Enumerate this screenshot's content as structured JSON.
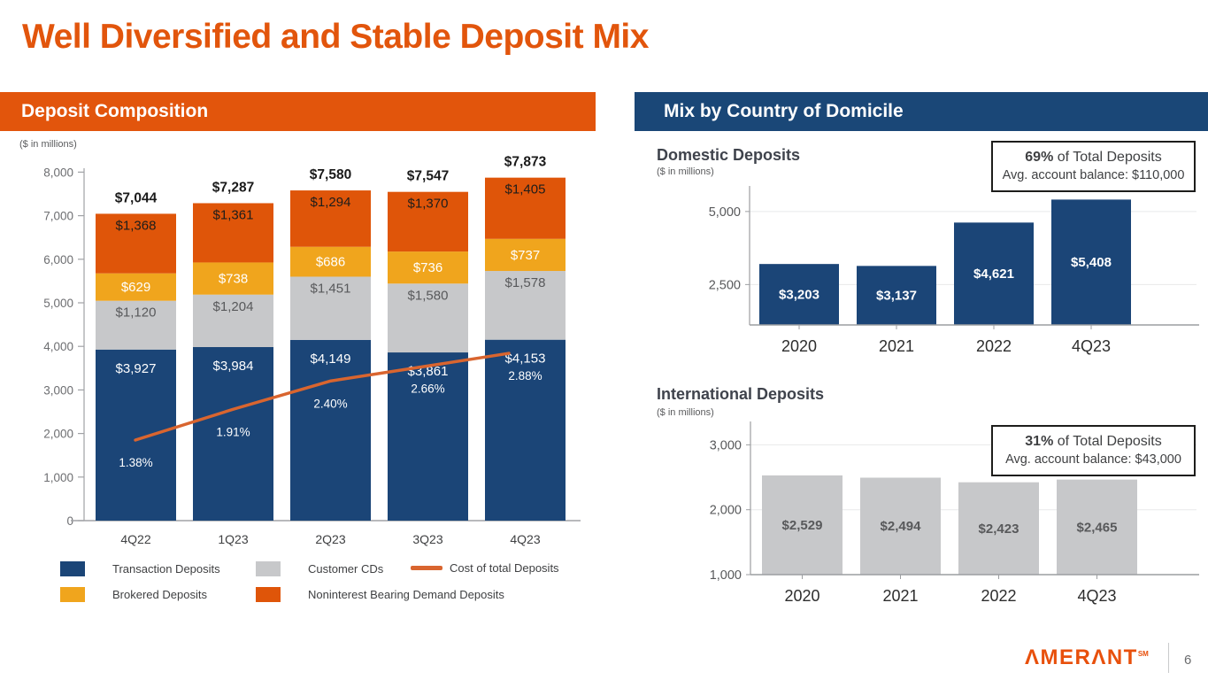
{
  "slide": {
    "title": "Well Diversified and Stable Deposit Mix",
    "page_number": "6",
    "logo_text": "AMERANT",
    "logo_sup": "SM",
    "brand_orange": "#E2550C",
    "brand_blue": "#1A4777"
  },
  "left_panel": {
    "header": "Deposit Composition",
    "units_label": "($ in millions)",
    "legend": [
      {
        "label": "Transaction Deposits",
        "color": "#1B4577",
        "type": "square"
      },
      {
        "label": "Customer CDs",
        "color": "#C7C8CA",
        "type": "square"
      },
      {
        "label": "Cost of total Deposits",
        "color": "#D9652F",
        "type": "line"
      },
      {
        "label": "Brokered Deposits",
        "color": "#F0A51D",
        "type": "square"
      },
      {
        "label": "Noninterest Bearing Demand Deposits",
        "color": "#DF5509",
        "type": "square"
      }
    ]
  },
  "right_panel": {
    "header": "Mix by Country of Domicile",
    "domestic": {
      "title": "Domestic Deposits",
      "units_label": "($ in millions)",
      "callout_bold": "69%",
      "callout_rest": " of Total Deposits",
      "callout_line2": "Avg. account balance: $110,000"
    },
    "international": {
      "title": "International Deposits",
      "units_label": "($ in millions)",
      "callout_bold": "31%",
      "callout_rest": " of Total Deposits",
      "callout_line2": "Avg. account balance: $43,000"
    }
  },
  "chart_data": [
    {
      "id": "deposit-composition",
      "type": "bar",
      "subtype": "stacked-bar-with-line",
      "title": "Deposit Composition",
      "ylabel": "($ in millions)",
      "categories": [
        "4Q22",
        "1Q23",
        "2Q23",
        "3Q23",
        "4Q23"
      ],
      "series": [
        {
          "name": "Transaction Deposits",
          "color": "#1B4577",
          "label_color": "#FFFFFF",
          "values": [
            3927,
            3984,
            4149,
            3861,
            4153
          ]
        },
        {
          "name": "Customer CDs",
          "color": "#C7C8CA",
          "label_color": "#58595B",
          "values": [
            1120,
            1204,
            1451,
            1580,
            1578
          ]
        },
        {
          "name": "Brokered Deposits",
          "color": "#F0A51D",
          "label_color": "#FFFFFF",
          "values": [
            629,
            738,
            686,
            736,
            737
          ]
        },
        {
          "name": "Noninterest Bearing Demand Deposits",
          "color": "#DF5509",
          "label_color": "#1D1D1B",
          "values": [
            1368,
            1361,
            1294,
            1370,
            1405
          ]
        }
      ],
      "totals": [
        7044,
        7287,
        7580,
        7547,
        7873
      ],
      "line_series": {
        "name": "Cost of total Deposits",
        "color": "#D9652F",
        "values_pct": [
          1.38,
          1.91,
          2.4,
          2.66,
          2.88
        ]
      },
      "yticks": [
        0,
        1000,
        2000,
        3000,
        4000,
        5000,
        6000,
        7000,
        8000
      ],
      "ylim": [
        0,
        8000
      ],
      "grid": false,
      "legend_position": "bottom"
    },
    {
      "id": "domestic-deposits",
      "type": "bar",
      "title": "Domestic Deposits",
      "categories": [
        "2020",
        "2021",
        "2022",
        "4Q23"
      ],
      "values": [
        3203,
        3137,
        4621,
        5408
      ],
      "bar_color": "#1B4577",
      "label_color": "#FFFFFF",
      "yticks": [
        2500,
        5000
      ],
      "ylim": [
        1100,
        5900
      ],
      "grid": true
    },
    {
      "id": "international-deposits",
      "type": "bar",
      "title": "International Deposits",
      "categories": [
        "2020",
        "2021",
        "2022",
        "4Q23"
      ],
      "values": [
        2529,
        2494,
        2423,
        2465
      ],
      "bar_color": "#C7C8CA",
      "label_color": "#58595B",
      "yticks": [
        1000,
        2000,
        3000
      ],
      "ylim": [
        1000,
        3400
      ],
      "grid": true
    }
  ]
}
